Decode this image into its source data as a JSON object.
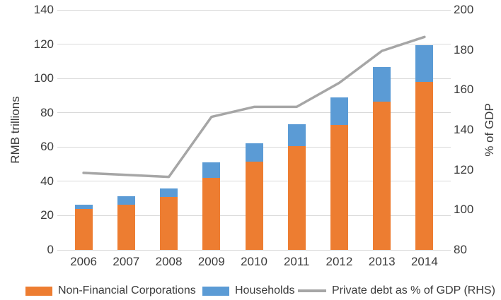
{
  "chart_data": {
    "type": "bar",
    "subtype": "stacked-bars-with-line",
    "title": "",
    "categories": [
      "2006",
      "2007",
      "2008",
      "2009",
      "2010",
      "2011",
      "2012",
      "2013",
      "2014"
    ],
    "series": [
      {
        "name": "Non-Financial Corporations",
        "type": "bar",
        "axis": "left",
        "color": "#ED7D31",
        "values": [
          24,
          26.5,
          31,
          42,
          51.5,
          60.5,
          73,
          86.5,
          98
        ]
      },
      {
        "name": "Households",
        "type": "bar",
        "axis": "left",
        "color": "#5B9BD5",
        "values": [
          2.5,
          5,
          5,
          9,
          10.5,
          13,
          16,
          20,
          21.5
        ]
      },
      {
        "name": "Private debt as % of GDP (RHS)",
        "type": "line",
        "axis": "right",
        "color": "#A6A6A6",
        "values": [
          118.5,
          117.5,
          116.5,
          146.5,
          151.5,
          151.5,
          163.5,
          179.5,
          186.5
        ]
      }
    ],
    "left_axis": {
      "title": "RMB trillions",
      "min": 0,
      "max": 140,
      "step": 20,
      "tick_labels": [
        "0",
        "20",
        "40",
        "60",
        "80",
        "100",
        "120",
        "140"
      ]
    },
    "right_axis": {
      "title": "% of GDP",
      "min": 80,
      "max": 200,
      "step": 20,
      "tick_labels": [
        "80",
        "100",
        "120",
        "140",
        "160",
        "180",
        "200"
      ]
    },
    "grid": true,
    "legend_position": "bottom",
    "colors": {
      "gridline": "#D9D9D9",
      "text": "#3B3B3B",
      "background": "#FFFFFF"
    }
  }
}
